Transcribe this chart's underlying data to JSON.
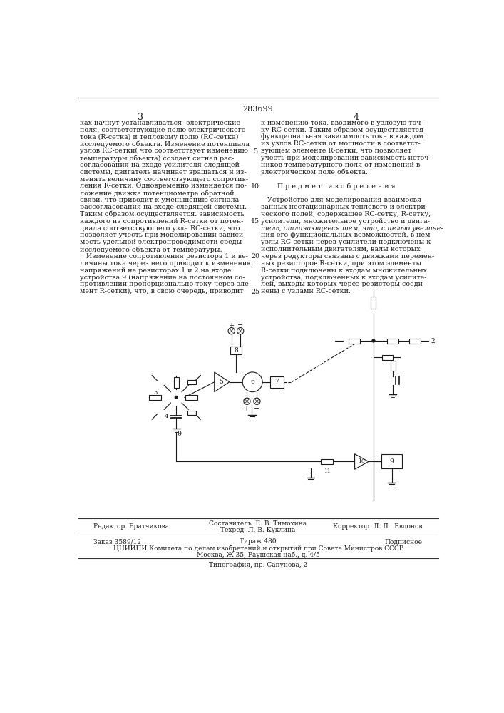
{
  "page_number_center": "283699",
  "page_col_left": "3",
  "page_col_right": "4",
  "col_left_text": [
    "ках начнут устанавливаться  электрические",
    "поля, соответствующие полю электрического",
    "тока (R-сетка) и тепловому полю (RC-сетка)",
    "исследуемого объекта. Изменение потенциала",
    "узлов RC-сетки( что соответствует изменению",
    "температуры объекта) создает сигнал рас-",
    "согласования на входе усилителя следящей",
    "системы, двигатель начинает вращаться и из-",
    "менять величину соответствующего сопротив-",
    "ления R-сетки. Одновременно изменяется по-",
    "ложение движка потенциометра обратной",
    "связи, что приводит к уменьшению сигнала",
    "рассогласования на входе следящей системы.",
    "Таким образом осуществляется. зависимость",
    "каждого из сопротивлений R-сетки от потен-",
    "циала соответствующего узла RC-сетки, что",
    "позволяет учесть при моделировании зависи-",
    "мость удельной электропроводимости среды",
    "исследуемого объекта от температуры.",
    "   Изменение сопротивления резистора 1 и ве-",
    "личины тока через него приводит к изменению",
    "напряжений на резисторах 1 и 2 на входе",
    "устройства 9 (напряжение на постоянном со-",
    "противлении пропорционально току через эле-",
    "мент R-сетки), что, в свою очередь, приводит"
  ],
  "col_right_text": [
    "к изменению тока, вводимого в узловую точ-",
    "ку RC-сетки. Таким образом осуществляется",
    "функциональная зависимость тока в каждом",
    "из узлов RC-сетки от мощности в соответст-",
    "вующем элементе R-сетки, что позволяет",
    "учесть при моделировании зависимость источ-",
    "ников температурного поля от изменений в",
    "электрическом поле объекта.",
    "",
    "   Предмет изобретения",
    "",
    "   Устройство для моделирования взаимосвя-",
    "занных нестационарных теплового и электри-",
    "ческого полей, содержащее RC-сетку, R-сетку,",
    "усилители, множительное устройство и двига-",
    "тель, отличающееся тем, что, с целью увеличе-",
    "ния его функциональных возможностей, в нем",
    "узлы RC-сетки через усилители подключены к",
    "исполнительным двигателям, валы которых",
    "через редукторы связаны с движками перемен-",
    "ных резисторов R-сетки, при этом элементы",
    "R-сетки подключены к входам множительных",
    "устройства, подключенных к входам усилите-",
    "лей, выходы которых через резисторы соеди-",
    "нены с узлами RC-сетки."
  ],
  "line_num_rows": [
    5,
    10,
    15,
    20,
    25
  ],
  "editor_line": "Редактор  Братчикова",
  "compiler_line": "Составитель  Е. В. Тимохина",
  "tech_line": "Техред  Л. В. Куклина",
  "corrector_line": "Корректор  Л. Л.  Евдонов",
  "order_line": "Заказ 3589/12",
  "tirazh_line": "Тираж 480",
  "podpisnoe_line": "Подписное",
  "cniip_line": "ЦНИИПИ Комитета по делам изобретений и открытий при Совете Министров СССР",
  "moscow_line": "Москва, Ж-35, Раушская наб., д. 4/5",
  "tipog_line": "Типография, пр. Сапунова, 2",
  "bg_color": "#ffffff",
  "text_color": "#1a1a1a",
  "line_color": "#333333"
}
